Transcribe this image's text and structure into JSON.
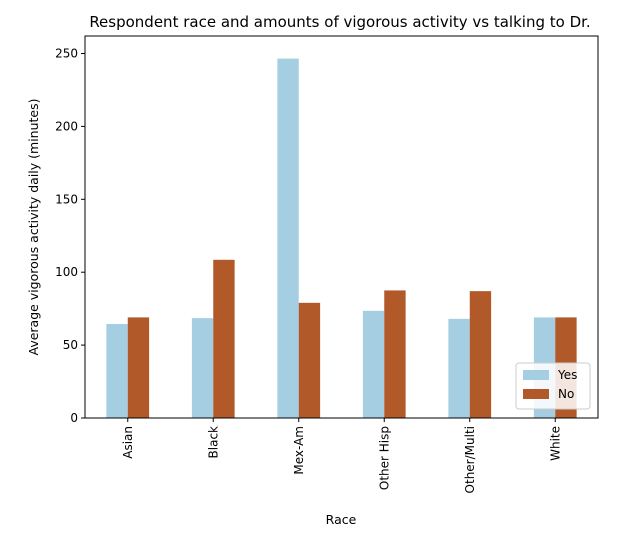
{
  "chart_data": {
    "type": "bar",
    "title": "Respondent race and amounts of vigorous activity vs talking to Dr.",
    "xlabel": "Race",
    "ylabel": "Average vigorous activity daily (minutes)",
    "categories": [
      "Asian",
      "Black",
      "Mex-Am",
      "Other Hisp",
      "Other/Multi",
      "White"
    ],
    "series": [
      {
        "name": "Yes",
        "color": "#a6cee3",
        "values": [
          64.5,
          68.5,
          246.5,
          73.5,
          68,
          69
        ]
      },
      {
        "name": "No",
        "color": "#b15928",
        "values": [
          69,
          108.5,
          79,
          87.5,
          87,
          69
        ]
      }
    ],
    "ylim": [
      0,
      262
    ],
    "yticks": [
      0,
      50,
      100,
      150,
      200,
      250
    ],
    "grid": false,
    "legend": "lower-right"
  }
}
